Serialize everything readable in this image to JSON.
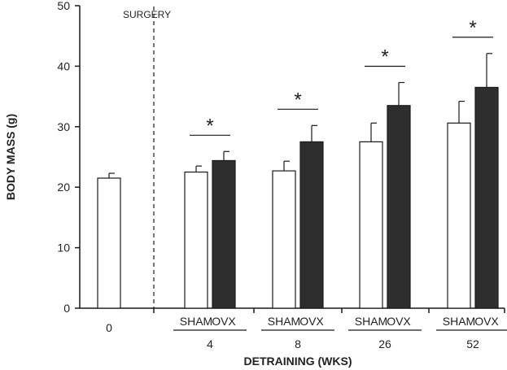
{
  "chart_data": {
    "type": "bar",
    "ylabel": "BODY MASS (g)",
    "xlabel": "DETRAINING (WKS)",
    "ylim": [
      0,
      50
    ],
    "yticks": [
      0,
      10,
      20,
      30,
      40,
      50
    ],
    "annotation": "SURGERY",
    "significance_marker": "*",
    "colors": {
      "SHAM": "#ffffff",
      "OVX": "#2e2e2e",
      "stroke": "#1a1a1a"
    },
    "baseline": {
      "category": "0",
      "value": 21.5,
      "error": 0.8
    },
    "categories": [
      "4",
      "8",
      "26",
      "52"
    ],
    "series": [
      {
        "name": "SHAM",
        "values": [
          22.5,
          22.7,
          27.5,
          30.6
        ],
        "errors": [
          1.0,
          1.6,
          3.1,
          3.6
        ]
      },
      {
        "name": "OVX",
        "values": [
          24.4,
          27.5,
          33.5,
          36.5
        ],
        "errors": [
          1.5,
          2.7,
          3.8,
          5.6
        ]
      }
    ],
    "significant": [
      true,
      true,
      true,
      true
    ]
  }
}
